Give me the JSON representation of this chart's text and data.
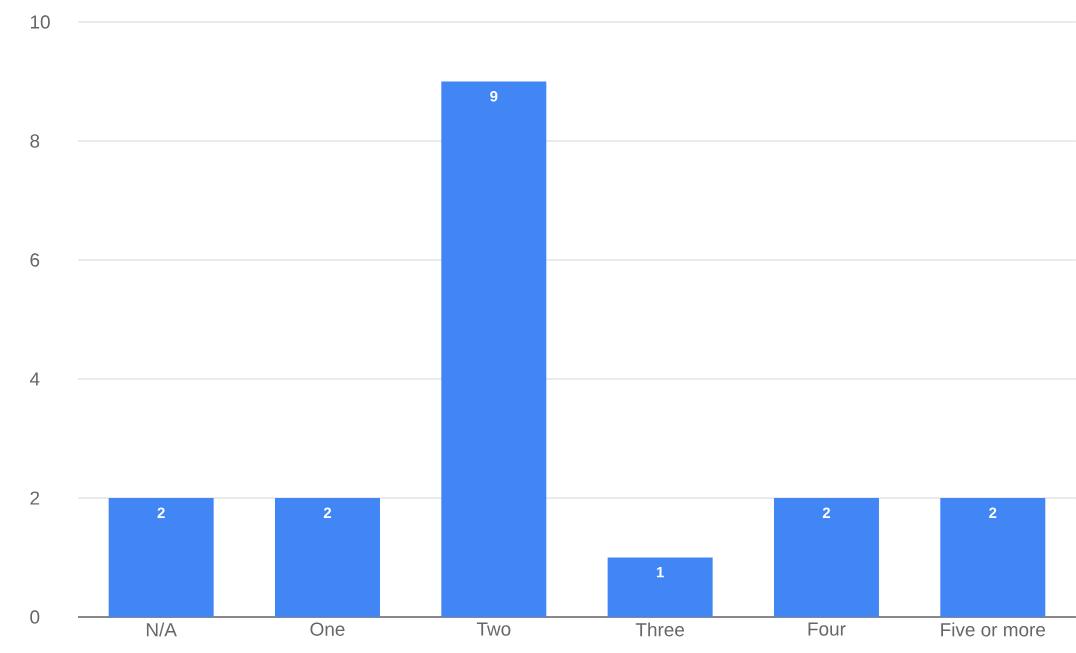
{
  "chart_data": {
    "type": "bar",
    "categories": [
      "N/A",
      "One",
      "Two",
      "Three",
      "Four",
      "Five or more"
    ],
    "values": [
      2,
      2,
      9,
      1,
      2,
      2
    ],
    "color": "#4285f4",
    "ylim": [
      0,
      10
    ],
    "yticks": [
      0,
      2,
      4,
      6,
      8,
      10
    ],
    "grid": "y",
    "data_labels": true
  }
}
